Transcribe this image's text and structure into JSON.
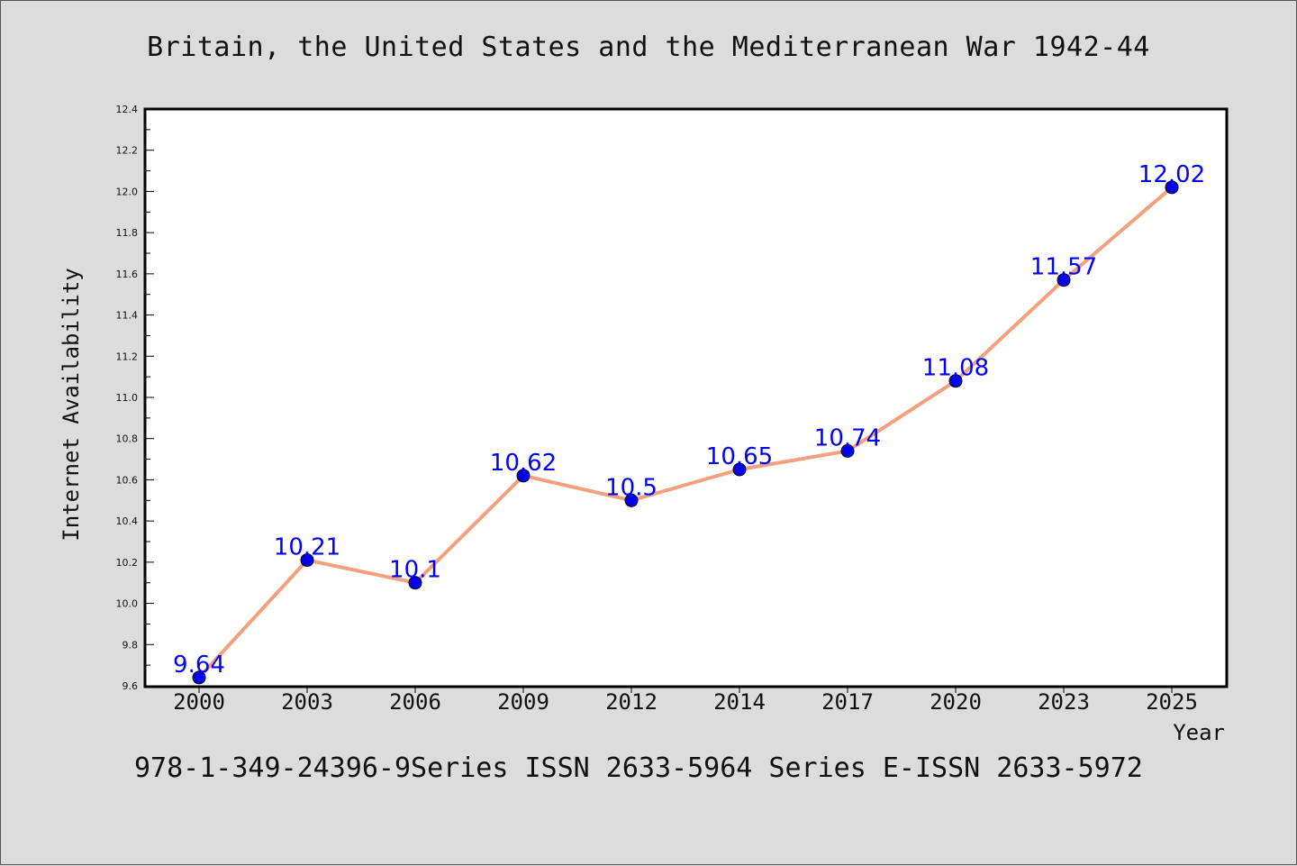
{
  "title": "Britain, the United States and the Mediterranean War 1942-44",
  "footer": "978-1-349-24396-9Series ISSN 2633-5964 Series E-ISSN 2633-5972",
  "colors": {
    "background": "#dcdcdc",
    "plot_background": "#ffffff",
    "line": "#f4a07e",
    "marker": "#0000ee",
    "data_label": "#0000ff"
  },
  "chart_data": {
    "type": "line",
    "title": "Britain, the United States and the Mediterranean War 1942-44",
    "xlabel": "Year",
    "ylabel": "Internet Availability",
    "categories": [
      "2000",
      "2003",
      "2006",
      "2009",
      "2012",
      "2014",
      "2017",
      "2020",
      "2023",
      "2025"
    ],
    "series": [
      {
        "values": [
          9.64,
          10.21,
          10.1,
          10.62,
          10.5,
          10.65,
          10.74,
          11.08,
          11.57,
          12.02
        ],
        "data_labels": [
          "9.64",
          "10.21",
          "10.1",
          "10.62",
          "10.5",
          "10.65",
          "10.74",
          "11.08",
          "11.57",
          "12.02"
        ]
      }
    ],
    "ylim": [
      9.6,
      12.4
    ],
    "yticks": [
      "9.6",
      "9.8",
      "10.0",
      "10.2",
      "10.4",
      "10.6",
      "10.8",
      "11.0",
      "11.2",
      "11.4",
      "11.6",
      "11.8",
      "12.0",
      "12.2",
      "12.4"
    ],
    "grid": false,
    "legend": "none"
  }
}
